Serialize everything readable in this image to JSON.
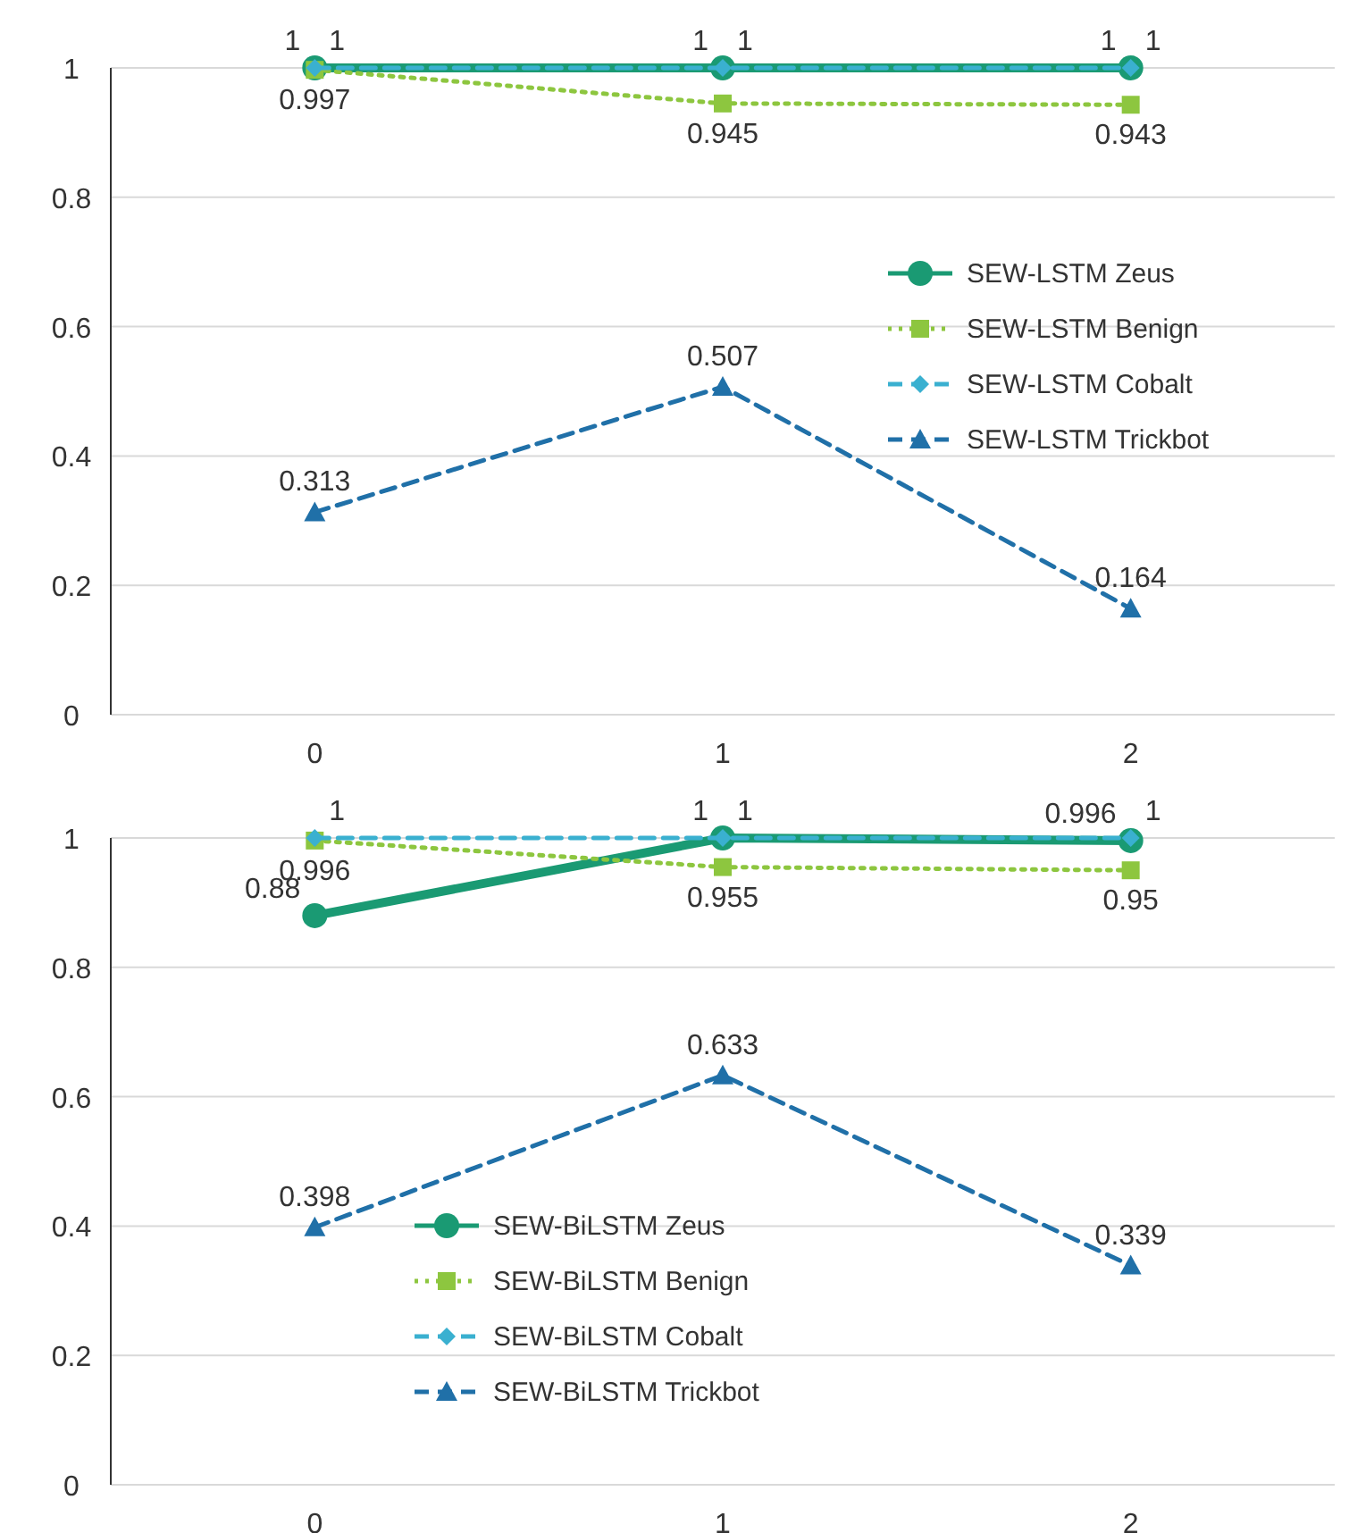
{
  "chart_data": [
    {
      "type": "line",
      "categories": [
        "0",
        "1",
        "2"
      ],
      "ylim": [
        0,
        1
      ],
      "yticks": [
        0,
        0.2,
        0.4,
        0.6,
        0.8,
        1
      ],
      "grid": "y",
      "legend": "right",
      "data_labels": true,
      "series": [
        {
          "name": "SEW-LSTM Zeus",
          "color": "#1a9a73",
          "values": [
            1,
            1,
            1
          ],
          "marker": "circle",
          "line_style": "solid"
        },
        {
          "name": "SEW-LSTM Benign",
          "color": "#8dc63f",
          "values": [
            0.997,
            0.945,
            0.943
          ],
          "marker": "square",
          "line_style": "dotted"
        },
        {
          "name": "SEW-LSTM Cobalt",
          "color": "#3ab0d0",
          "values": [
            1,
            1,
            1
          ],
          "marker": "diamond",
          "line_style": "dashed"
        },
        {
          "name": "SEW-LSTM Trickbot",
          "color": "#2070a8",
          "values": [
            0.313,
            0.507,
            0.164
          ],
          "marker": "triangle",
          "line_style": "dashed"
        }
      ]
    },
    {
      "type": "line",
      "categories": [
        "0",
        "1",
        "2"
      ],
      "ylim": [
        0,
        1
      ],
      "yticks": [
        0,
        0.2,
        0.4,
        0.6,
        0.8,
        1
      ],
      "grid": "y",
      "legend": "bottom",
      "data_labels": true,
      "series": [
        {
          "name": "SEW-BiLSTM Zeus",
          "color": "#1a9a73",
          "values": [
            0.88,
            1,
            0.996
          ],
          "marker": "circle",
          "line_style": "solid"
        },
        {
          "name": "SEW-BiLSTM Benign",
          "color": "#8dc63f",
          "values": [
            0.996,
            0.955,
            0.95
          ],
          "marker": "square",
          "line_style": "dotted"
        },
        {
          "name": "SEW-BiLSTM Cobalt",
          "color": "#3ab0d0",
          "values": [
            1,
            1,
            1
          ],
          "marker": "diamond",
          "line_style": "dashed"
        },
        {
          "name": "SEW-BiLSTM Trickbot",
          "color": "#2070a8",
          "values": [
            0.398,
            0.633,
            0.339
          ],
          "marker": "triangle",
          "line_style": "dashed"
        }
      ]
    }
  ]
}
